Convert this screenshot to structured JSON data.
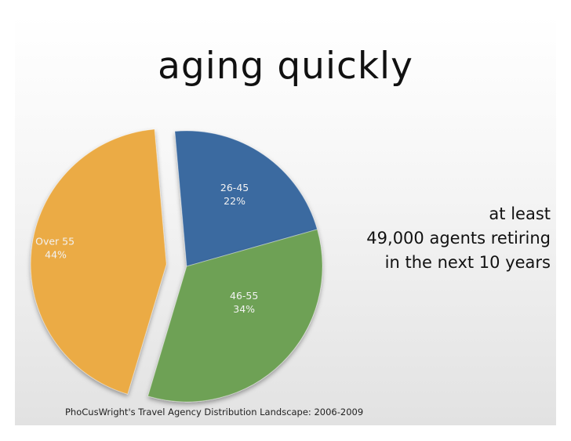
{
  "title": "aging quickly",
  "callout": {
    "line1": "at least",
    "line2": "49,000 agents retiring",
    "line3": "in the next 10 years"
  },
  "source": "PhoCusWright's Travel Agency Distribution Landscape: 2006-2009",
  "colors": {
    "26-45": "#3b6aa0",
    "46-55": "#6ea154",
    "Over 55": "#ebab45"
  },
  "chart_data": {
    "type": "pie",
    "title": "",
    "slices": [
      {
        "label": "26-45",
        "value": 22,
        "value_label": "22%",
        "color": "#3b6aa0"
      },
      {
        "label": "46-55",
        "value": 34,
        "value_label": "34%",
        "color": "#6ea154"
      },
      {
        "label": "Over 55",
        "value": 44,
        "value_label": "44%",
        "color": "#ebab45",
        "exploded": true
      }
    ]
  }
}
